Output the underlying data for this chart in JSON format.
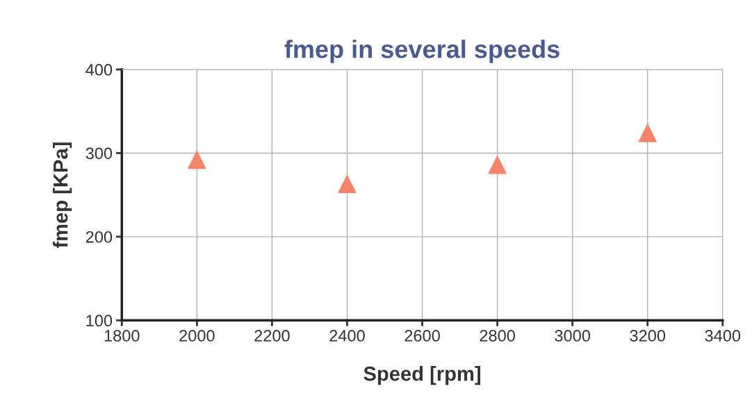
{
  "chart_data": {
    "type": "scatter",
    "title": "fmep in several speeds",
    "xlabel": "Speed [rpm]",
    "ylabel": "fmep [KPa]",
    "x": [
      2000,
      2400,
      2800,
      3200
    ],
    "series": [
      {
        "color": "#f4846a",
        "values": [
          292,
          263,
          286,
          324
        ]
      }
    ],
    "marker": "triangle",
    "xlim": [
      1800,
      3400
    ],
    "xticks": [
      1800,
      2000,
      2200,
      2400,
      2600,
      2800,
      3000,
      3200,
      3400
    ],
    "ylim": [
      100,
      400
    ],
    "yticks": [
      100,
      200,
      300,
      400
    ],
    "grid": true
  }
}
